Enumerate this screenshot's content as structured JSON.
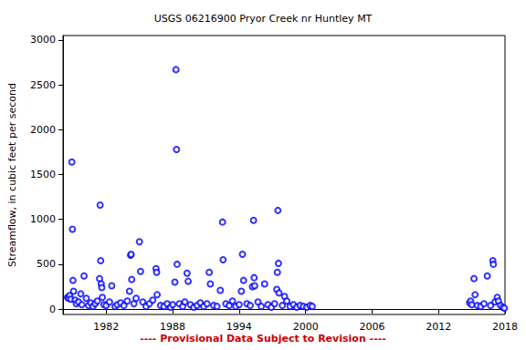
{
  "chart_data": {
    "type": "scatter",
    "title": "USGS 06216900 Pryor Creek nr Huntley MT",
    "ylabel": "Streamflow, in cubic feet per second",
    "annotation": "---- Provisional Data Subject to Revision ----",
    "color": "#0000ff",
    "marker": "open circle",
    "grid": false,
    "xlim": [
      1978.1,
      2018
    ],
    "xticks": [
      1982,
      1988,
      1994,
      2000,
      2006,
      2012,
      2018
    ],
    "ylim": [
      -60,
      3050
    ],
    "yticks": [
      0,
      500,
      1000,
      1500,
      2000,
      2500,
      3000
    ],
    "x": [
      1978.5,
      1978.6,
      1978.7,
      1978.8,
      1978.9,
      1978.95,
      1979.0,
      1979.05,
      1979.2,
      1979.3,
      1979.5,
      1979.7,
      1979.8,
      1980.0,
      1980.2,
      1980.4,
      1980.6,
      1980.8,
      1981.0,
      1981.2,
      1981.4,
      1981.45,
      1981.5,
      1981.55,
      1981.6,
      1981.65,
      1981.8,
      1982.0,
      1982.3,
      1982.5,
      1982.8,
      1983.0,
      1983.3,
      1983.6,
      1983.9,
      1984.1,
      1984.2,
      1984.25,
      1984.3,
      1984.5,
      1984.7,
      1985.0,
      1985.1,
      1985.3,
      1985.6,
      1985.9,
      1986.2,
      1986.5,
      1986.55,
      1986.6,
      1986.9,
      1987.2,
      1987.5,
      1987.8,
      1988.0,
      1988.2,
      1988.3,
      1988.35,
      1988.4,
      1988.6,
      1988.9,
      1989.1,
      1989.3,
      1989.4,
      1989.6,
      1989.9,
      1990.2,
      1990.5,
      1990.8,
      1991.1,
      1991.3,
      1991.4,
      1991.7,
      1992.0,
      1992.3,
      1992.5,
      1992.55,
      1992.8,
      1993.1,
      1993.4,
      1993.7,
      1994.0,
      1994.2,
      1994.3,
      1994.4,
      1994.7,
      1995.0,
      1995.2,
      1995.3,
      1995.35,
      1995.4,
      1995.7,
      1996.0,
      1996.3,
      1996.6,
      1996.9,
      1997.2,
      1997.4,
      1997.45,
      1997.5,
      1997.55,
      1997.6,
      1997.9,
      1998.1,
      1998.3,
      1998.6,
      1998.9,
      1999.2,
      1999.5,
      1999.8,
      2000.1,
      2000.4,
      2000.6,
      2014.8,
      2014.9,
      2015.0,
      2015.2,
      2015.3,
      2015.5,
      2015.8,
      2016.1,
      2016.4,
      2016.7,
      2016.9,
      2016.95,
      2017.1,
      2017.3,
      2017.4,
      2017.6,
      2017.8,
      2017.95
    ],
    "values": [
      130,
      120,
      150,
      110,
      1640,
      890,
      320,
      200,
      100,
      60,
      80,
      170,
      50,
      370,
      120,
      40,
      70,
      30,
      60,
      90,
      340,
      1160,
      540,
      280,
      240,
      130,
      50,
      40,
      80,
      260,
      30,
      50,
      70,
      40,
      90,
      200,
      600,
      610,
      330,
      60,
      120,
      750,
      420,
      80,
      30,
      60,
      100,
      450,
      410,
      160,
      40,
      30,
      60,
      20,
      50,
      300,
      2670,
      1780,
      500,
      60,
      30,
      80,
      400,
      310,
      50,
      20,
      40,
      70,
      30,
      60,
      410,
      280,
      40,
      30,
      210,
      970,
      550,
      60,
      40,
      90,
      30,
      50,
      200,
      610,
      320,
      60,
      40,
      250,
      990,
      350,
      260,
      80,
      30,
      280,
      50,
      20,
      60,
      220,
      410,
      1100,
      510,
      180,
      40,
      140,
      90,
      30,
      50,
      20,
      40,
      30,
      20,
      40,
      30,
      70,
      90,
      50,
      340,
      160,
      40,
      30,
      60,
      370,
      40,
      540,
      500,
      80,
      130,
      90,
      40,
      20,
      10
    ]
  }
}
